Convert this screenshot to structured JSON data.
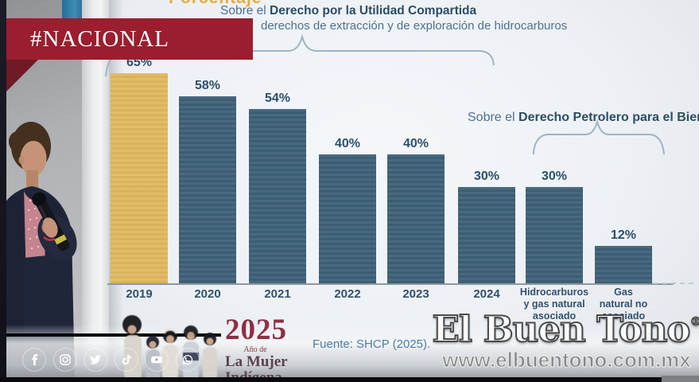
{
  "banner": {
    "label": "#NACIONAL"
  },
  "colors": {
    "banner_red": "#9a1e2e",
    "ribbon_dark_red": "#701a26",
    "bar_teal": "#3e6177",
    "bar_gold": "#e1b85f",
    "chart_text_blue": "#2d4c66",
    "brace_blue": "#9db4c6",
    "source_blue": "#4b7ca6",
    "logo_maroon": "#8e2f44",
    "watermark_grey": "#8f8f8f"
  },
  "chart_data": {
    "type": "bar",
    "title": "Porcentaje",
    "categories": [
      "2019",
      "2020",
      "2021",
      "2022",
      "2023",
      "2024",
      "Hidrocarburos y gas natural asociado",
      "Gas natural no asociado"
    ],
    "categories_display": [
      [
        "2019"
      ],
      [
        "2020"
      ],
      [
        "2021"
      ],
      [
        "2022"
      ],
      [
        "2023"
      ],
      [
        "2024"
      ],
      [
        "Hidrocarburos",
        "y gas natural",
        "asociado"
      ],
      [
        "Gas",
        "natural no",
        "asociado"
      ]
    ],
    "values": [
      65,
      58,
      54,
      40,
      40,
      30,
      30,
      12
    ],
    "value_labels": [
      "65%",
      "58%",
      "54%",
      "40%",
      "40%",
      "30%",
      "30%",
      "12%"
    ],
    "bar_colors": [
      "#e1b85f",
      "#3e6177",
      "#3e6177",
      "#3e6177",
      "#3e6177",
      "#3e6177",
      "#3e6177",
      "#3e6177"
    ],
    "ylim": [
      0,
      70
    ],
    "grid": false,
    "legend": false,
    "groups": [
      {
        "prefix": "Sobre el ",
        "label": "Derecho por la Utilidad Compartida",
        "sublabel": "derechos de extracción y de exploración de hidrocarburos",
        "bars": [
          0,
          1,
          2,
          3,
          4,
          5
        ]
      },
      {
        "prefix": "Sobre el ",
        "label": "Derecho Petrolero para el Bien",
        "bars": [
          6,
          7
        ]
      }
    ],
    "source": "Fuente: SHCP (2025)."
  },
  "logo_2025": {
    "year": "2025",
    "subtitle": "Año de",
    "line1": "La Mujer",
    "line2": "Indígena"
  },
  "watermark": {
    "name": "El Buen Tono",
    "registered": "®",
    "url": "www.elbuentono.com.mx"
  },
  "social": {
    "icons": [
      "facebook",
      "instagram",
      "twitter",
      "tiktok",
      "youtube",
      "whatsapp"
    ]
  }
}
